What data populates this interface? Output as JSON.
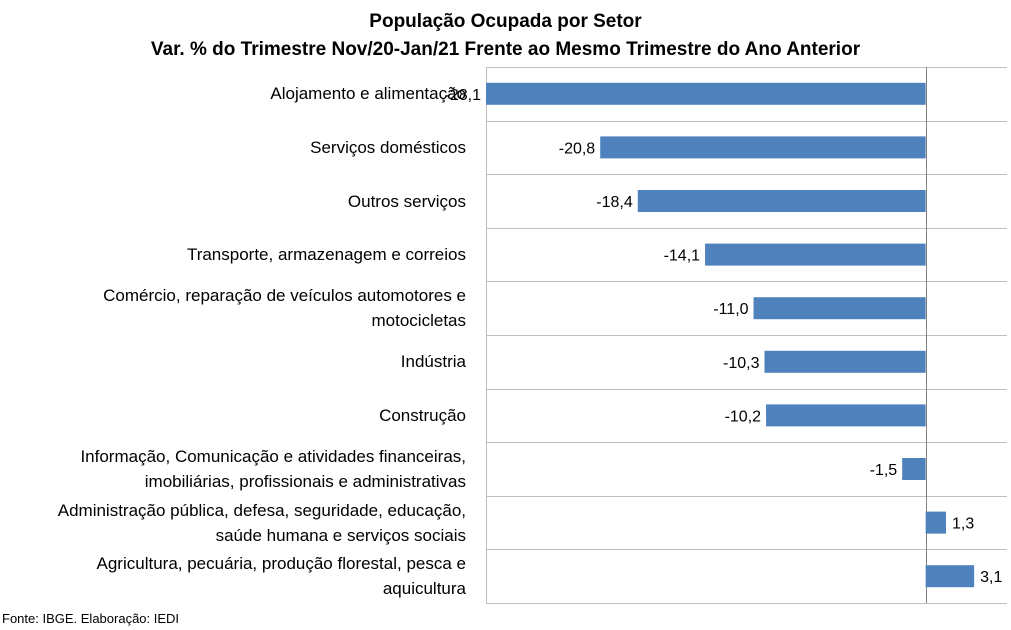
{
  "chart_data": {
    "type": "bar",
    "orientation": "horizontal",
    "title": "População Ocupada por Setor",
    "subtitle": "Var. % do Trimestre Nov/20-Jan/21 Frente ao Mesmo Trimestre do Ano Anterior",
    "categories": [
      [
        "Alojamento e alimentação"
      ],
      [
        "Serviços domésticos"
      ],
      [
        "Outros serviços"
      ],
      [
        "Transporte, armazenagem e correios"
      ],
      [
        "Comércio, reparação de veículos automotores e",
        "motocicletas"
      ],
      [
        "Indústria"
      ],
      [
        "Construção"
      ],
      [
        "Informação, Comunicação e atividades financeiras,",
        "imobiliárias, profissionais e administrativas"
      ],
      [
        "Administração pública, defesa, seguridade, educação,",
        "saúde humana e serviços sociais"
      ],
      [
        "Agricultura, pecuária, produção florestal, pesca e",
        "aquicultura"
      ]
    ],
    "values": [
      -28.1,
      -20.8,
      -18.4,
      -14.1,
      -11.0,
      -10.3,
      -10.2,
      -1.5,
      1.3,
      3.1
    ],
    "value_labels": [
      "-28,1",
      "-20,8",
      "-18,4",
      "-14,1",
      "-11,0",
      "-10,3",
      "-10,2",
      "-1,5",
      "1,3",
      "3,1"
    ],
    "xlim": [
      -28.1,
      5.2
    ],
    "grid": true,
    "bar_color": "#4F81BD"
  },
  "source": "Fonte: IBGE. Elaboração: IEDI"
}
